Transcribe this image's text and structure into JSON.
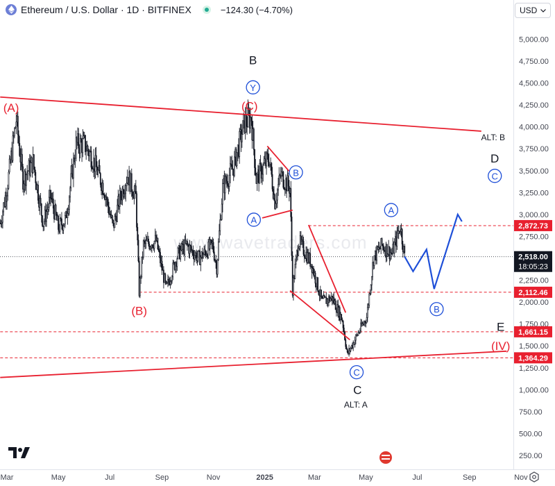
{
  "header": {
    "symbol": "Ethereum / U.S. Dollar · 1D · BITFINEX",
    "change": "−124.30 (−4.70%)",
    "change_color": "#131722",
    "currency": "USD"
  },
  "watermark": "www.wavetraders.com",
  "colors": {
    "red": "#e8202f",
    "blue": "#1e4fd8",
    "black": "#131722",
    "axis_text": "#434651",
    "grid": "#ffffff"
  },
  "chart_data": {
    "type": "candlestick",
    "symbol": "ETHUSD",
    "interval": "1D",
    "exchange": "BITFINEX",
    "ylim": [
      0,
      5500
    ],
    "y_ticks": [
      "5,000.00",
      "4,750.00",
      "4,500.00",
      "4,250.00",
      "4,000.00",
      "3,750.00",
      "3,500.00",
      "3,250.00",
      "3,000.00",
      "2,750.00",
      "2,500.00",
      "2,250.00",
      "2,000.00",
      "1,750.00",
      "1,500.00",
      "1,250.00",
      "1,000.00",
      "750.00",
      "500.00",
      "250.00"
    ],
    "y_tick_values": [
      5000,
      4750,
      4500,
      4250,
      4000,
      3750,
      3500,
      3250,
      3000,
      2750,
      2500,
      2250,
      2000,
      1750,
      1500,
      1250,
      1000,
      750,
      500,
      250
    ],
    "x_ticks": [
      {
        "label": "Mar",
        "date": "2024-03-01"
      },
      {
        "label": "May",
        "date": "2024-05-01"
      },
      {
        "label": "Jul",
        "date": "2024-07-01"
      },
      {
        "label": "Sep",
        "date": "2024-09-01"
      },
      {
        "label": "Nov",
        "date": "2024-11-01"
      },
      {
        "label": "2025",
        "date": "2025-01-01",
        "bold": true
      },
      {
        "label": "Mar",
        "date": "2025-03-01"
      },
      {
        "label": "May",
        "date": "2025-05-01"
      },
      {
        "label": "Jul",
        "date": "2025-07-01"
      },
      {
        "label": "Sep",
        "date": "2025-09-01"
      },
      {
        "label": "Nov",
        "date": "2025-11-01"
      }
    ],
    "x_start": "2024-03-01",
    "x_end": "2025-11-25",
    "price_path": [
      [
        "2024-02-22",
        2900
      ],
      [
        "2024-03-01",
        3300
      ],
      [
        "2024-03-12",
        4080
      ],
      [
        "2024-03-20",
        3400
      ],
      [
        "2024-04-01",
        3600
      ],
      [
        "2024-04-13",
        2900
      ],
      [
        "2024-04-22",
        3200
      ],
      [
        "2024-05-01",
        2850
      ],
      [
        "2024-05-10",
        2950
      ],
      [
        "2024-05-22",
        3800
      ],
      [
        "2024-06-01",
        3800
      ],
      [
        "2024-06-10",
        3650
      ],
      [
        "2024-06-24",
        3300
      ],
      [
        "2024-07-05",
        2850
      ],
      [
        "2024-07-12",
        3150
      ],
      [
        "2024-07-22",
        3450
      ],
      [
        "2024-08-01",
        3200
      ],
      [
        "2024-08-05",
        2120
      ],
      [
        "2024-08-10",
        2650
      ],
      [
        "2024-08-25",
        2700
      ],
      [
        "2024-09-06",
        2150
      ],
      [
        "2024-09-20",
        2550
      ],
      [
        "2024-09-30",
        2650
      ],
      [
        "2024-10-15",
        2500
      ],
      [
        "2024-10-31",
        2650
      ],
      [
        "2024-11-05",
        2400
      ],
      [
        "2024-11-12",
        3300
      ],
      [
        "2024-11-25",
        3550
      ],
      [
        "2024-12-08",
        4050
      ],
      [
        "2024-12-16",
        4100
      ],
      [
        "2024-12-22",
        3400
      ],
      [
        "2025-01-06",
        3650
      ],
      [
        "2025-01-13",
        3150
      ],
      [
        "2025-01-20",
        3450
      ],
      [
        "2025-01-31",
        3300
      ],
      [
        "2025-02-03",
        2150
      ],
      [
        "2025-02-10",
        2700
      ],
      [
        "2025-02-25",
        2450
      ],
      [
        "2025-03-10",
        2000
      ],
      [
        "2025-03-22",
        2050
      ],
      [
        "2025-04-03",
        1800
      ],
      [
        "2025-04-09",
        1400
      ],
      [
        "2025-04-22",
        1650
      ],
      [
        "2025-05-02",
        1830
      ],
      [
        "2025-05-10",
        2500
      ],
      [
        "2025-05-20",
        2650
      ],
      [
        "2025-06-01",
        2550
      ],
      [
        "2025-06-11",
        2870
      ],
      [
        "2025-06-16",
        2518
      ]
    ],
    "current_price": 2518.0,
    "current_price_label": "2,518.00",
    "countdown": "18:05:23",
    "price_labels": [
      {
        "label": "2,872.73",
        "value": 2872.73,
        "color": "#e8202f"
      },
      {
        "label": "2,112.46",
        "value": 2112.46,
        "color": "#e8202f"
      },
      {
        "label": "1,661.15",
        "value": 1661.15,
        "color": "#e8202f"
      },
      {
        "label": "1,364.29",
        "value": 1364.29,
        "color": "#e8202f"
      }
    ],
    "dashed_levels": [
      {
        "value": 2872.73,
        "from": "2025-02-22",
        "to": "2025-11-25"
      },
      {
        "value": 2112.46,
        "from": "2024-08-05",
        "to": "2025-11-25"
      },
      {
        "value": 1661.15,
        "from": "2024-02-22",
        "to": "2025-11-25"
      },
      {
        "value": 1364.29,
        "from": "2024-02-22",
        "to": "2025-11-25"
      }
    ],
    "trendlines_red": [
      {
        "from": [
          "2024-02-22",
          4340
        ],
        "to": [
          "2025-09-15",
          3950
        ]
      },
      {
        "from": [
          "2024-02-22",
          1140
        ],
        "to": [
          "2025-10-15",
          1440
        ]
      },
      {
        "from": [
          "2025-01-04",
          3780
        ],
        "to": [
          "2025-02-01",
          3470
        ]
      },
      {
        "from": [
          "2024-12-29",
          2960
        ],
        "to": [
          "2025-02-03",
          3050
        ]
      },
      {
        "from": [
          "2025-01-31",
          2130
        ],
        "to": [
          "2025-04-12",
          1570
        ]
      },
      {
        "from": [
          "2025-02-22",
          2880
        ],
        "to": [
          "2025-04-07",
          1880
        ]
      }
    ],
    "projection_blue": [
      [
        "2025-06-16",
        2520
      ],
      [
        "2025-06-26",
        2350
      ],
      [
        "2025-07-12",
        2600
      ],
      [
        "2025-07-21",
        2150
      ],
      [
        "2025-08-18",
        3000
      ],
      [
        "2025-08-23",
        2920
      ]
    ],
    "labels": [
      {
        "text": "(A)",
        "date": "2024-03-06",
        "value": 4220,
        "color": "#e8202f",
        "style": "plain"
      },
      {
        "text": "(B)",
        "date": "2024-08-05",
        "value": 1900,
        "color": "#e8202f",
        "style": "plain"
      },
      {
        "text": "(C)",
        "date": "2024-12-14",
        "value": 4240,
        "color": "#e8202f",
        "style": "plain"
      },
      {
        "text": "(IV)",
        "date": "2025-10-08",
        "value": 1500,
        "color": "#e8202f",
        "style": "plain"
      },
      {
        "text": "E",
        "date": "2025-10-08",
        "value": 1720,
        "color": "#131722",
        "style": "plain"
      },
      {
        "text": "B",
        "date": "2024-12-18",
        "value": 4760,
        "color": "#131722",
        "style": "plain"
      },
      {
        "text": "Y",
        "date": "2024-12-18",
        "value": 4450,
        "color": "#1e4fd8",
        "style": "circle"
      },
      {
        "text": "A",
        "date": "2024-12-19",
        "value": 2940,
        "color": "#1e4fd8",
        "style": "circle"
      },
      {
        "text": "B",
        "date": "2025-02-07",
        "value": 3480,
        "color": "#1e4fd8",
        "style": "circle"
      },
      {
        "text": "C",
        "date": "2025-04-20",
        "value": 1200,
        "color": "#1e4fd8",
        "style": "circle"
      },
      {
        "text": "C",
        "date": "2025-04-21",
        "value": 1000,
        "color": "#131722",
        "style": "plain"
      },
      {
        "text": "ALT: A",
        "date": "2025-04-19",
        "value": 830,
        "color": "#131722",
        "style": "small"
      },
      {
        "text": "A",
        "date": "2025-05-31",
        "value": 3050,
        "color": "#1e4fd8",
        "style": "circle"
      },
      {
        "text": "B",
        "date": "2025-07-24",
        "value": 1920,
        "color": "#1e4fd8",
        "style": "circle"
      },
      {
        "text": "ALT: B",
        "date": "2025-09-29",
        "value": 3880,
        "color": "#131722",
        "style": "small"
      },
      {
        "text": "D",
        "date": "2025-10-01",
        "value": 3640,
        "color": "#131722",
        "style": "plain"
      },
      {
        "text": "C",
        "date": "2025-10-01",
        "value": 3440,
        "color": "#1e4fd8",
        "style": "circle"
      }
    ]
  }
}
